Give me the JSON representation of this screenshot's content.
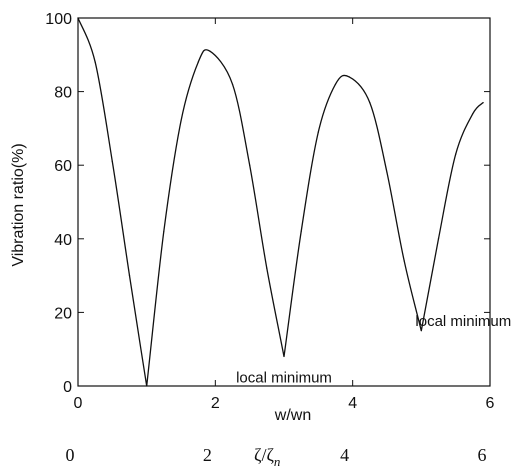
{
  "chart_data": {
    "type": "line",
    "title": "",
    "xlabel": "w/wn",
    "ylabel": "Vibration ratio(%)",
    "xlim": [
      0,
      6
    ],
    "ylim": [
      0,
      100
    ],
    "xticks": [
      "0",
      "2",
      "4",
      "6"
    ],
    "yticks": [
      "0",
      "20",
      "40",
      "60",
      "80",
      "100"
    ],
    "grid": false,
    "series": [
      {
        "x": [
          0,
          0.25,
          0.5,
          0.75,
          1.0,
          1.25,
          1.5,
          1.75,
          1.92,
          2.25,
          2.5,
          2.75,
          3.0,
          3.25,
          3.5,
          3.75,
          3.95,
          4.25,
          4.5,
          4.75,
          5.0,
          5.25,
          5.5,
          5.75,
          5.9
        ],
        "y": [
          100,
          88,
          61,
          30,
          0,
          42,
          72,
          88,
          91,
          82,
          60,
          32,
          8,
          42,
          69,
          82,
          84,
          77,
          58,
          34,
          15,
          40,
          63,
          74,
          77
        ]
      }
    ],
    "annotations": [
      {
        "text": "local minimum",
        "x": 3.0,
        "y": 8
      },
      {
        "text": "local minimum",
        "x": 5.0,
        "y": 15
      }
    ],
    "secondary_axis": {
      "label": "ζ/ζ",
      "label_subscript": "n",
      "ticks": [
        "0",
        "2",
        "4",
        "6"
      ]
    }
  }
}
